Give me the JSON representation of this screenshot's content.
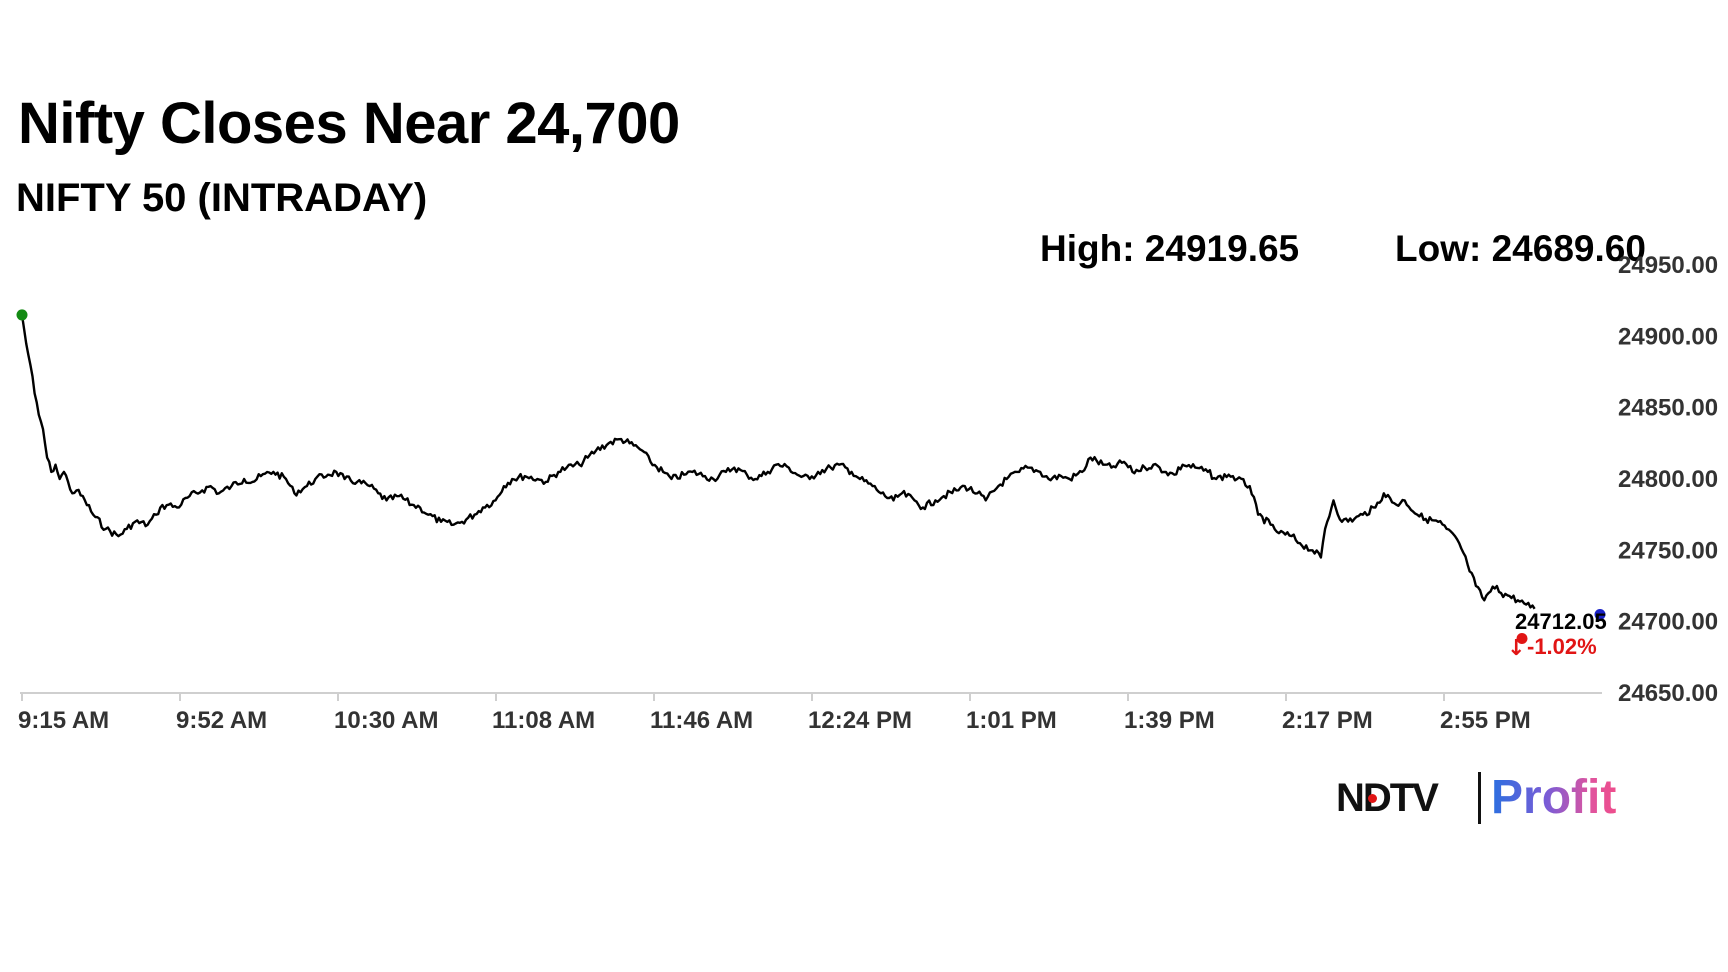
{
  "header": {
    "title": "Nifty Closes Near 24,700",
    "subtitle": "NIFTY 50 (INTRADAY)",
    "high_label": "High: 24919.65",
    "low_label": "Low: 24689.60"
  },
  "chart_data": {
    "type": "line",
    "title": "Nifty Closes Near 24,700",
    "subtitle": "NIFTY 50 (INTRADAY)",
    "high": 24919.65,
    "low": 24689.6,
    "last_value": "24712.05",
    "change": "-1.02%",
    "x_tick_labels": [
      "9:15 AM",
      "9:52 AM",
      "10:30 AM",
      "11:08 AM",
      "11:46 AM",
      "12:24 PM",
      "1:01 PM",
      "1:39 PM",
      "2:17 PM",
      "2:55 PM"
    ],
    "y_tick_labels": [
      "24950.00",
      "24900.00",
      "24850.00",
      "24800.00",
      "24750.00",
      "24700.00",
      "24650.00"
    ],
    "ylim": [
      24650,
      24950
    ],
    "xlim_minutes": [
      555,
      930
    ],
    "y_axis_position": "right",
    "grid": false,
    "series": [
      {
        "x": [
          555,
          556,
          557,
          558,
          559,
          560,
          561,
          562,
          563,
          564,
          565,
          566,
          567,
          568,
          570,
          572,
          575,
          578,
          580,
          582,
          585,
          587,
          588,
          590,
          592,
          595,
          598,
          600,
          602,
          605,
          608,
          610,
          612,
          615,
          618,
          620,
          623,
          625,
          628,
          630,
          632,
          635,
          638,
          640,
          642,
          645,
          648,
          650,
          652,
          655,
          658,
          660,
          663,
          665,
          668,
          670,
          672,
          675,
          678,
          680,
          683,
          685,
          688,
          690,
          692,
          695,
          698,
          700,
          703,
          705,
          708,
          710,
          713,
          715,
          718,
          720,
          723,
          725,
          728,
          730,
          733,
          735,
          738,
          740,
          743,
          745,
          748,
          750,
          753,
          755,
          758,
          760,
          763,
          765,
          768,
          770,
          773,
          775,
          778,
          780,
          783,
          785,
          788,
          790,
          793,
          795,
          798,
          800,
          803,
          805,
          808,
          810,
          813,
          815,
          818,
          820,
          823,
          825,
          828,
          830,
          832,
          835,
          838,
          840,
          843,
          845,
          848,
          850,
          853,
          855,
          858,
          860,
          863,
          865,
          866,
          868,
          870,
          873,
          875,
          878,
          880,
          883,
          885,
          888,
          890,
          893,
          895,
          898,
          900,
          902,
          904,
          905,
          907,
          908,
          910,
          912,
          914,
          915,
          916
        ],
        "y": [
          24915,
          24895,
          24880,
          24860,
          24845,
          24835,
          24815,
          24805,
          24810,
          24800,
          24805,
          24798,
          24790,
          24792,
          24785,
          24775,
          24765,
          24760,
          24765,
          24770,
          24768,
          24775,
          24780,
          24782,
          24780,
          24788,
          24792,
          24795,
          24790,
          24795,
          24800,
          24798,
          24802,
          24805,
          24800,
          24790,
          24795,
          24800,
          24803,
          24805,
          24800,
          24798,
          24795,
          24790,
          24785,
          24788,
          24782,
          24780,
          24775,
          24770,
          24768,
          24770,
          24775,
          24780,
          24785,
          24795,
          24800,
          24802,
          24800,
          24798,
          24805,
          24808,
          24810,
          24815,
          24820,
          24825,
          24828,
          24825,
          24820,
          24812,
          24805,
          24800,
          24803,
          24805,
          24802,
          24800,
          24805,
          24808,
          24803,
          24800,
          24805,
          24810,
          24808,
          24803,
          24800,
          24805,
          24808,
          24810,
          24805,
          24800,
          24795,
          24790,
          24785,
          24790,
          24785,
          24780,
          24785,
          24788,
          24792,
          24795,
          24790,
          24785,
          24795,
          24800,
          24805,
          24808,
          24805,
          24800,
          24802,
          24800,
          24805,
          24815,
          24810,
          24808,
          24812,
          24805,
          24808,
          24810,
          24805,
          24803,
          24810,
          24808,
          24805,
          24800,
          24803,
          24800,
          24795,
          24775,
          24768,
          24762,
          24760,
          24755,
          24750,
          24745,
          24765,
          24785,
          24770,
          24772,
          24775,
          24780,
          24790,
          24782,
          24785,
          24775,
          24772,
          24770,
          24765,
          24755,
          24740,
          24725,
          24715,
          24720,
          24725,
          24720,
          24718,
          24715,
          24712,
          24710,
          24709
        ]
      }
    ]
  },
  "markers": {
    "start_color": "#138a13",
    "end_color": "#1a22c8",
    "down_color": "#e11515",
    "line_color": "#000000"
  },
  "brand": {
    "name": "NDTV",
    "product": "Profit",
    "dot_color": "#e11515"
  }
}
